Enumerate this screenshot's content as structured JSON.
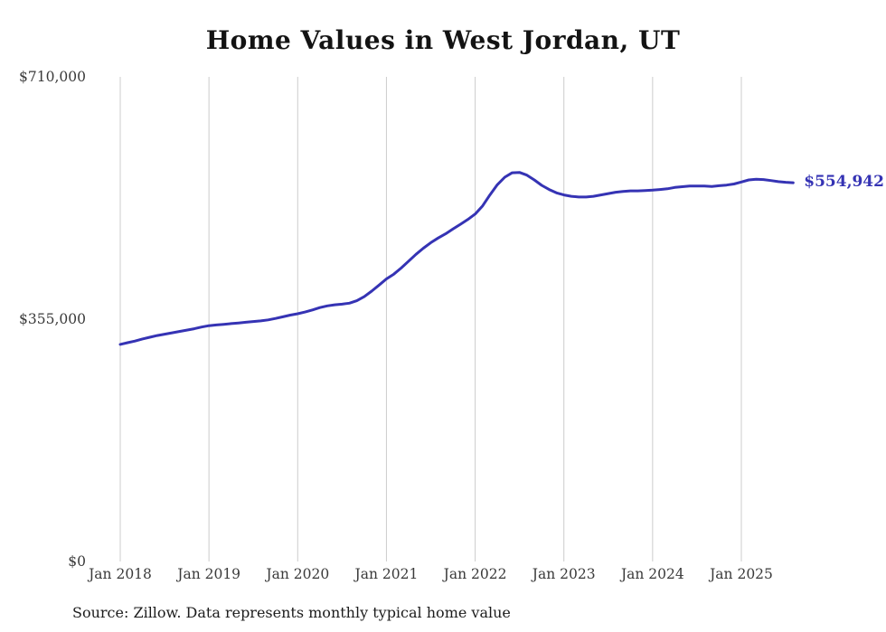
{
  "title": "Home Values in West Jordan, UT",
  "source_note": "Source: Zillow. Data represents monthly typical home value",
  "colors": {
    "line": "#3533b4",
    "end_label": "#3533b4",
    "grid": "#cccccc",
    "axis_text": "#3a3a3a",
    "title": "#131313",
    "background": "#ffffff"
  },
  "chart_data": {
    "type": "line",
    "title": "Home Values in West Jordan, UT",
    "xlabel": "",
    "ylabel": "",
    "ylim": [
      0,
      710000
    ],
    "grid": "vertical-only",
    "legend": "none",
    "y_ticks": [
      {
        "value": 0,
        "label": "$0"
      },
      {
        "value": 355000,
        "label": "$355,000"
      },
      {
        "value": 710000,
        "label": "$710,000"
      }
    ],
    "x_ticks": [
      {
        "month_index": 0,
        "label": "Jan 2018"
      },
      {
        "month_index": 12,
        "label": "Jan 2019"
      },
      {
        "month_index": 24,
        "label": "Jan 2020"
      },
      {
        "month_index": 36,
        "label": "Jan 2021"
      },
      {
        "month_index": 48,
        "label": "Jan 2022"
      },
      {
        "month_index": 60,
        "label": "Jan 2023"
      },
      {
        "month_index": 72,
        "label": "Jan 2024"
      },
      {
        "month_index": 84,
        "label": "Jan 2025"
      }
    ],
    "end_label": "$554,942",
    "end_value": 554942,
    "series": [
      {
        "name": "Monthly typical home value",
        "start_month": "2018-01",
        "frequency": "monthly",
        "values": [
          318000,
          320500,
          323000,
          326000,
          328500,
          331000,
          333000,
          335000,
          337000,
          339000,
          341000,
          343500,
          345500,
          346500,
          347500,
          348500,
          349500,
          350500,
          351500,
          352500,
          354000,
          356000,
          358500,
          361000,
          363000,
          365500,
          368500,
          372000,
          374500,
          376000,
          377000,
          378500,
          382000,
          388000,
          396000,
          405000,
          414000,
          421000,
          430000,
          440000,
          450000,
          459000,
          467000,
          474000,
          480000,
          487000,
          494000,
          501000,
          509000,
          521000,
          537000,
          552000,
          563000,
          569500,
          570000,
          566000,
          559000,
          551000,
          545000,
          540000,
          537000,
          535000,
          534000,
          534000,
          535000,
          537000,
          539000,
          541000,
          542000,
          543000,
          543000,
          543500,
          544000,
          545000,
          546000,
          548000,
          549000,
          550000,
          550000,
          550000,
          549500,
          550500,
          551500,
          553000,
          556000,
          559000,
          560000,
          559500,
          558000,
          556500,
          555500,
          554942
        ]
      }
    ]
  }
}
